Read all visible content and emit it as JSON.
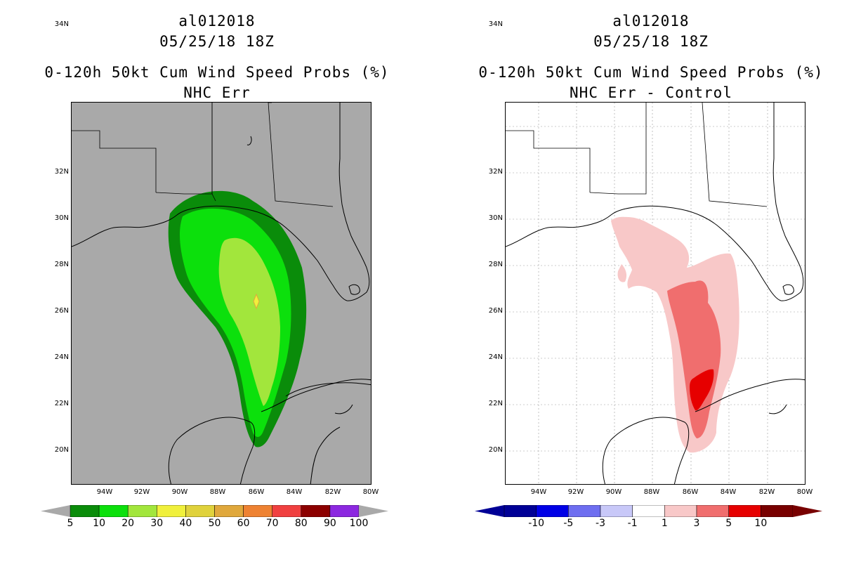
{
  "left_panel": {
    "title_line1": "al012018",
    "title_line2": "05/25/18 18Z",
    "title_line3": "0-120h 50kt Cum Wind Speed Probs (%)",
    "title_line4": "NHC Err",
    "map_background": "#a9a9a9",
    "colorbar": {
      "colors": [
        "#0a8c0a",
        "#0ce00c",
        "#a2e63c",
        "#f0f03c",
        "#e0d23c",
        "#e0a83c",
        "#ee8232",
        "#f04040",
        "#8c0000",
        "#8c28e0"
      ],
      "labels": [
        "5",
        "10",
        "20",
        "30",
        "40",
        "50",
        "60",
        "70",
        "80",
        "90",
        "100"
      ]
    },
    "contours": {
      "ge5": "#0a8c0a",
      "ge10": "#0ce00c",
      "ge20": "#a2e63c",
      "ge30": "#f0f03c"
    }
  },
  "right_panel": {
    "title_line1": "al012018",
    "title_line2": "05/25/18 18Z",
    "title_line3": "0-120h 50kt Cum Wind Speed Probs (%)",
    "title_line4": "NHC Err - Control",
    "map_background": "#ffffff",
    "colorbar": {
      "colors": [
        "#000096",
        "#0000e6",
        "#6e6ef0",
        "#c8c8f8",
        "#ffffff",
        "#f8c8c8",
        "#f06e6e",
        "#e60000",
        "#780000"
      ],
      "labels": [
        "-10",
        "-5",
        "-3",
        "-1",
        "1",
        "3",
        "5",
        "10"
      ]
    },
    "contours": {
      "ge1": "#f8c8c8",
      "ge3": "#f06e6e",
      "ge5": "#e60000"
    }
  },
  "axes": {
    "lat_labels": [
      "34N",
      "32N",
      "30N",
      "28N",
      "26N",
      "24N",
      "22N",
      "20N"
    ],
    "lon_labels": [
      "94W",
      "92W",
      "90W",
      "88W",
      "86W",
      "84W",
      "82W",
      "80W"
    ]
  }
}
